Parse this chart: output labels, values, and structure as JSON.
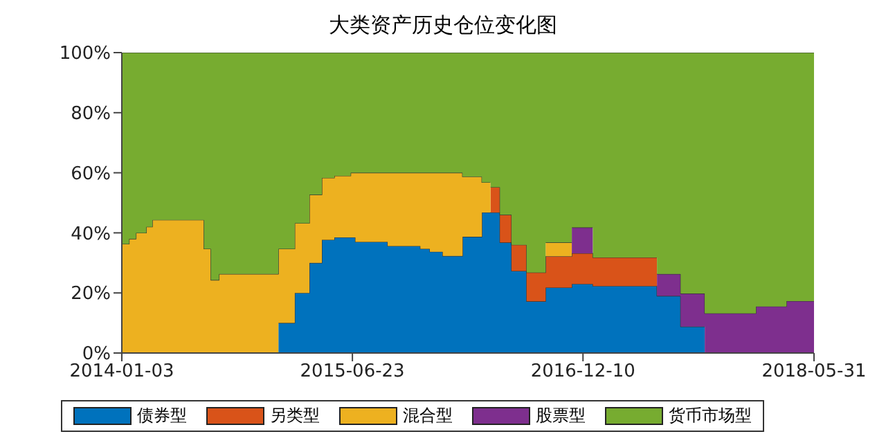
{
  "chart_data": {
    "type": "area",
    "stacked": true,
    "title": "大类资产历史仓位变化图",
    "x": [
      "2014-01-03",
      "2014-01-20",
      "2014-01-20",
      "2014-02-05",
      "2014-02-05",
      "2014-03-01",
      "2014-03-01",
      "2014-03-15",
      "2014-03-15",
      "2014-07-13",
      "2014-07-13",
      "2014-07-29",
      "2014-07-29",
      "2014-08-17",
      "2014-08-17",
      "2015-01-02",
      "2015-01-02",
      "2015-02-09",
      "2015-02-09",
      "2015-03-15",
      "2015-03-15",
      "2015-04-13",
      "2015-04-13",
      "2015-05-12",
      "2015-05-12",
      "2015-06-19",
      "2015-06-19",
      "2015-06-30",
      "2015-06-30",
      "2015-09-13",
      "2015-09-13",
      "2015-11-28",
      "2015-11-28",
      "2015-12-20",
      "2015-12-20",
      "2016-01-19",
      "2016-01-19",
      "2016-03-05",
      "2016-03-05",
      "2016-04-19",
      "2016-04-19",
      "2016-05-09",
      "2016-05-09",
      "2016-05-31",
      "2016-05-31",
      "2016-06-27",
      "2016-06-27",
      "2016-08-01",
      "2016-08-01",
      "2016-09-14",
      "2016-09-14",
      "2016-11-14",
      "2016-11-14",
      "2017-01-02",
      "2017-01-02",
      "2017-05-31",
      "2017-05-31",
      "2017-07-25",
      "2017-07-25",
      "2017-09-19",
      "2017-09-19",
      "2018-01-16",
      "2018-01-16",
      "2018-03-28",
      "2018-03-28",
      "2018-05-31"
    ],
    "series": [
      {
        "name": "债券型",
        "color": "#0072bd",
        "values": [
          null,
          null,
          null,
          null,
          null,
          null,
          null,
          null,
          null,
          null,
          null,
          null,
          null,
          null,
          null,
          null,
          10,
          10,
          20,
          20,
          30,
          30,
          37.7,
          37.7,
          38.5,
          38.5,
          38.5,
          38.5,
          37,
          37,
          35.6,
          35.6,
          34.7,
          34.7,
          33.7,
          33.7,
          32.3,
          32.3,
          38.7,
          38.7,
          46.8,
          46.8,
          46.8,
          46.8,
          36.8,
          36.8,
          27.3,
          27.3,
          17.2,
          17.2,
          21.8,
          21.8,
          23,
          23,
          22.3,
          22.3,
          19,
          19,
          8.8,
          8.8,
          null,
          null,
          null,
          null,
          null,
          null
        ]
      },
      {
        "name": "另类型",
        "color": "#d95319",
        "values": [
          null,
          null,
          null,
          null,
          null,
          null,
          null,
          null,
          null,
          null,
          null,
          null,
          null,
          null,
          null,
          null,
          null,
          null,
          null,
          null,
          null,
          null,
          null,
          null,
          null,
          null,
          null,
          null,
          null,
          null,
          null,
          null,
          null,
          null,
          null,
          null,
          null,
          null,
          null,
          null,
          null,
          null,
          8.4,
          8.4,
          9.2,
          9.2,
          8.7,
          8.7,
          9.6,
          9.6,
          10.4,
          10.4,
          10.2,
          10.2,
          9.5,
          9.5,
          null,
          null,
          null,
          null,
          null,
          null,
          null,
          null,
          null,
          null
        ]
      },
      {
        "name": "混合型",
        "color": "#edb120",
        "values": [
          36.3,
          36.3,
          38,
          38,
          40,
          40,
          42,
          42,
          44.3,
          44.3,
          34.7,
          34.7,
          24.3,
          24.3,
          26.3,
          26.3,
          24.7,
          24.7,
          23.2,
          23.2,
          22.7,
          22.7,
          20.6,
          20.6,
          20.5,
          20.5,
          21.5,
          21.5,
          23,
          23,
          24.4,
          24.4,
          25.3,
          25.3,
          26.3,
          26.3,
          27.7,
          27.7,
          20,
          20,
          10,
          10,
          null,
          null,
          null,
          null,
          null,
          null,
          null,
          null,
          4.6,
          4.6,
          null,
          null,
          null,
          null,
          null,
          null,
          null,
          null,
          null,
          null,
          null,
          null,
          null,
          null
        ]
      },
      {
        "name": "股票型",
        "color": "#7e2f8e",
        "values": [
          null,
          null,
          null,
          null,
          null,
          null,
          null,
          null,
          null,
          null,
          null,
          null,
          null,
          null,
          null,
          null,
          null,
          null,
          null,
          null,
          null,
          null,
          null,
          null,
          null,
          null,
          null,
          null,
          null,
          null,
          null,
          null,
          null,
          null,
          null,
          null,
          null,
          null,
          null,
          null,
          null,
          null,
          null,
          null,
          null,
          null,
          null,
          null,
          null,
          null,
          null,
          null,
          8.6,
          8.6,
          null,
          null,
          7.3,
          7.3,
          11,
          11,
          13.2,
          13.2,
          15.5,
          15.5,
          17.3,
          17.3
        ]
      },
      {
        "name": "货币市场型",
        "color": "#77ac30",
        "values": [
          63.7,
          63.7,
          62,
          62,
          60,
          60,
          58,
          58,
          55.7,
          55.7,
          65.3,
          65.3,
          75.7,
          75.7,
          73.7,
          73.7,
          65.3,
          65.3,
          56.8,
          56.8,
          47.3,
          47.3,
          41.7,
          41.7,
          41,
          41,
          40,
          40,
          40,
          40,
          40,
          40,
          40,
          40,
          40,
          40,
          40,
          40,
          41.3,
          41.3,
          43.2,
          43.2,
          44.8,
          44.8,
          54,
          54,
          64,
          64,
          73.2,
          73.2,
          63.2,
          63.2,
          58.2,
          58.2,
          68.2,
          68.2,
          73.7,
          73.7,
          80.2,
          80.2,
          86.8,
          86.8,
          84.5,
          84.5,
          82.7,
          82.7
        ]
      }
    ],
    "xlim": [
      "2014-01-03",
      "2018-05-31"
    ],
    "xticks": [
      "2014-01-03",
      "2015-06-23",
      "2016-12-10",
      "2018-05-31"
    ],
    "ylim": [
      0,
      100
    ],
    "yticks": [
      {
        "value": 0,
        "label": "0%"
      },
      {
        "value": 20,
        "label": "20%"
      },
      {
        "value": 40,
        "label": "40%"
      },
      {
        "value": 60,
        "label": "60%"
      },
      {
        "value": 80,
        "label": "80%"
      },
      {
        "value": 100,
        "label": "100%"
      }
    ],
    "legend": "bottom"
  }
}
